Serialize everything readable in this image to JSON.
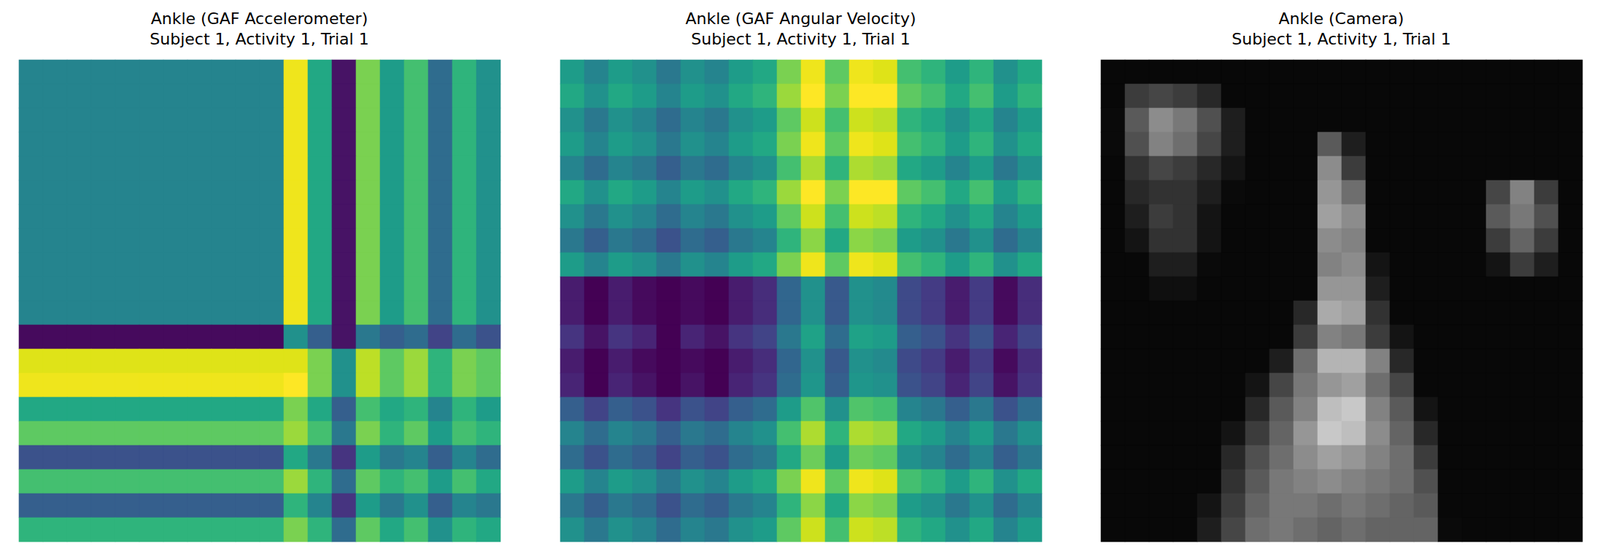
{
  "chart_data": [
    {
      "type": "heatmap",
      "title": "Ankle (GAF Accelerometer)",
      "subtitle": "Subject 1, Activity 1, Trial 1",
      "color": "viridis",
      "tick_labels": false,
      "clim": [
        -1,
        1
      ],
      "cells": [
        [
          -0.1,
          -0.1,
          -0.1,
          -0.1,
          -0.1,
          -0.1,
          -0.1,
          -0.1,
          -0.1,
          -0.1,
          -0.1,
          0.95,
          0.2,
          -0.9,
          0.6,
          0.1,
          0.4,
          -0.3,
          0.3,
          0
        ],
        [
          -0.1,
          -0.1,
          -0.1,
          -0.1,
          -0.1,
          -0.1,
          -0.1,
          -0.1,
          -0.1,
          -0.1,
          -0.1,
          0.95,
          0.2,
          -0.9,
          0.6,
          0.1,
          0.4,
          -0.3,
          0.3,
          0
        ],
        [
          -0.1,
          -0.1,
          -0.1,
          -0.1,
          -0.1,
          -0.1,
          -0.1,
          -0.1,
          -0.1,
          -0.1,
          -0.1,
          0.95,
          0.2,
          -0.9,
          0.6,
          0.1,
          0.4,
          -0.3,
          0.3,
          0
        ],
        [
          -0.1,
          -0.1,
          -0.1,
          -0.1,
          -0.1,
          -0.1,
          -0.1,
          -0.1,
          -0.1,
          -0.1,
          -0.1,
          0.95,
          0.2,
          -0.9,
          0.6,
          0.1,
          0.4,
          -0.3,
          0.3,
          0
        ],
        [
          -0.1,
          -0.1,
          -0.1,
          -0.1,
          -0.1,
          -0.1,
          -0.1,
          -0.1,
          -0.1,
          -0.1,
          -0.1,
          0.95,
          0.2,
          -0.9,
          0.6,
          0.1,
          0.4,
          -0.3,
          0.3,
          0
        ],
        [
          -0.1,
          -0.1,
          -0.1,
          -0.1,
          -0.1,
          -0.1,
          -0.1,
          -0.1,
          -0.1,
          -0.1,
          -0.1,
          0.95,
          0.2,
          -0.9,
          0.6,
          0.1,
          0.4,
          -0.3,
          0.3,
          0
        ],
        [
          -0.1,
          -0.1,
          -0.1,
          -0.1,
          -0.1,
          -0.1,
          -0.1,
          -0.1,
          -0.1,
          -0.1,
          -0.1,
          0.95,
          0.2,
          -0.9,
          0.6,
          0.1,
          0.4,
          -0.3,
          0.3,
          0
        ],
        [
          -0.1,
          -0.1,
          -0.1,
          -0.1,
          -0.1,
          -0.1,
          -0.1,
          -0.1,
          -0.1,
          -0.1,
          -0.1,
          0.95,
          0.2,
          -0.9,
          0.6,
          0.1,
          0.4,
          -0.3,
          0.3,
          0
        ],
        [
          -0.1,
          -0.1,
          -0.1,
          -0.1,
          -0.1,
          -0.1,
          -0.1,
          -0.1,
          -0.1,
          -0.1,
          -0.1,
          0.95,
          0.2,
          -0.9,
          0.6,
          0.1,
          0.4,
          -0.3,
          0.3,
          0
        ],
        [
          -0.1,
          -0.1,
          -0.1,
          -0.1,
          -0.1,
          -0.1,
          -0.1,
          -0.1,
          -0.1,
          -0.1,
          -0.1,
          0.95,
          0.2,
          -0.9,
          0.6,
          0.1,
          0.4,
          -0.3,
          0.3,
          0
        ],
        [
          -0.1,
          -0.1,
          -0.1,
          -0.1,
          -0.1,
          -0.1,
          -0.1,
          -0.1,
          -0.1,
          -0.1,
          -0.1,
          0.95,
          0.2,
          -0.9,
          0.6,
          0.1,
          0.4,
          -0.3,
          0.3,
          0
        ],
        [
          -0.95,
          -0.95,
          -0.95,
          -0.95,
          -0.95,
          -0.95,
          -0.95,
          -0.95,
          -0.95,
          -0.95,
          -0.95,
          0,
          -0.4,
          -0.9,
          -0.2,
          -0.4,
          -0.3,
          -0.6,
          -0.3,
          -0.5
        ],
        [
          0.9,
          0.9,
          0.9,
          0.9,
          0.9,
          0.9,
          0.9,
          0.9,
          0.9,
          0.9,
          0.9,
          0.9,
          0.6,
          0,
          0.8,
          0.5,
          0.7,
          0.3,
          0.6,
          0.5
        ],
        [
          0.95,
          0.95,
          0.95,
          0.95,
          0.95,
          0.95,
          0.95,
          0.95,
          0.95,
          0.95,
          0.95,
          1,
          0.6,
          0,
          0.8,
          0.5,
          0.7,
          0.3,
          0.6,
          0.5
        ],
        [
          0.2,
          0.2,
          0.2,
          0.2,
          0.2,
          0.2,
          0.2,
          0.2,
          0.2,
          0.2,
          0.2,
          0.6,
          0.2,
          -0.4,
          0.4,
          0.2,
          0.3,
          -0.1,
          0.3,
          0.1
        ],
        [
          0.5,
          0.5,
          0.5,
          0.5,
          0.5,
          0.5,
          0.5,
          0.5,
          0.5,
          0.5,
          0.5,
          0.7,
          0.4,
          -0.2,
          0.6,
          0.3,
          0.5,
          0.1,
          0.4,
          0.3
        ],
        [
          -0.5,
          -0.5,
          -0.5,
          -0.5,
          -0.5,
          -0.5,
          -0.5,
          -0.5,
          -0.5,
          -0.5,
          -0.5,
          0.2,
          -0.2,
          -0.7,
          0.1,
          -0.2,
          -0.1,
          -0.4,
          -0.1,
          -0.3
        ],
        [
          0.4,
          0.4,
          0.4,
          0.4,
          0.4,
          0.4,
          0.4,
          0.4,
          0.4,
          0.4,
          0.4,
          0.7,
          0.3,
          -0.3,
          0.5,
          0.3,
          0.4,
          0.1,
          0.4,
          0.2
        ],
        [
          -0.4,
          -0.4,
          -0.4,
          -0.4,
          -0.4,
          -0.4,
          -0.4,
          -0.4,
          -0.4,
          -0.4,
          -0.4,
          0.3,
          -0.1,
          -0.7,
          0.1,
          -0.2,
          0,
          -0.4,
          -0.1,
          -0.2
        ],
        [
          0.3,
          0.3,
          0.3,
          0.3,
          0.3,
          0.3,
          0.3,
          0.3,
          0.3,
          0.3,
          0.3,
          0.6,
          0.3,
          -0.3,
          0.5,
          0.2,
          0.4,
          0,
          0.3,
          0.2
        ]
      ]
    },
    {
      "type": "heatmap",
      "title": "Ankle (GAF Angular Velocity)",
      "subtitle": "Subject 1, Activity 1, Trial 1",
      "color": "viridis",
      "tick_labels": false,
      "clim": [
        -1,
        1
      ],
      "cells": [
        [
          0.1,
          -0.1,
          0.1,
          0,
          -0.2,
          0,
          -0.1,
          0.1,
          0.2,
          0.6,
          0.95,
          0.5,
          0.95,
          0.9,
          0.4,
          0.3,
          0.1,
          0.3,
          0,
          0.2
        ],
        [
          0.2,
          0,
          0.2,
          0.1,
          -0.1,
          0.1,
          0,
          0.2,
          0.3,
          0.7,
          1,
          0.6,
          1,
          1,
          0.5,
          0.4,
          0.2,
          0.4,
          0.1,
          0.3
        ],
        [
          0,
          -0.2,
          0,
          -0.1,
          -0.3,
          -0.1,
          -0.2,
          0,
          0.1,
          0.5,
          0.85,
          0.4,
          0.85,
          0.8,
          0.3,
          0.2,
          0,
          0.2,
          -0.1,
          0.1
        ],
        [
          0.1,
          -0.1,
          0.1,
          0,
          -0.2,
          0,
          -0.1,
          0.1,
          0.2,
          0.6,
          0.95,
          0.5,
          0.95,
          0.9,
          0.4,
          0.3,
          0.1,
          0.3,
          0,
          0.2
        ],
        [
          -0.1,
          -0.3,
          -0.1,
          -0.2,
          -0.4,
          -0.2,
          -0.3,
          -0.1,
          0,
          0.4,
          0.75,
          0.3,
          0.75,
          0.7,
          0.2,
          0.1,
          -0.1,
          0.1,
          -0.2,
          0
        ],
        [
          0.2,
          0,
          0.2,
          0.1,
          -0.1,
          0.1,
          0,
          0.2,
          0.3,
          0.7,
          1,
          0.6,
          1,
          1,
          0.5,
          0.4,
          0.2,
          0.4,
          0.1,
          0.3
        ],
        [
          0,
          -0.2,
          0,
          -0.1,
          -0.3,
          -0.1,
          -0.2,
          0,
          0.1,
          0.5,
          0.85,
          0.4,
          0.85,
          0.8,
          0.3,
          0.2,
          0,
          0.2,
          -0.1,
          0.1
        ],
        [
          -0.2,
          -0.4,
          -0.2,
          -0.3,
          -0.5,
          -0.3,
          -0.4,
          -0.2,
          -0.1,
          0.3,
          0.65,
          0.2,
          0.65,
          0.6,
          0.1,
          0,
          -0.2,
          0,
          -0.3,
          -0.1
        ],
        [
          0.1,
          -0.1,
          0.1,
          0,
          -0.2,
          0,
          -0.1,
          0.1,
          0.2,
          0.6,
          0.95,
          0.5,
          0.95,
          0.9,
          0.4,
          0.3,
          0.1,
          0.3,
          0,
          0.2
        ],
        [
          -0.85,
          -1,
          -0.85,
          -0.95,
          -1,
          -0.95,
          -1,
          -0.85,
          -0.75,
          -0.35,
          0,
          -0.45,
          0,
          -0.05,
          -0.55,
          -0.65,
          -0.85,
          -0.65,
          -0.95,
          -0.75
        ],
        [
          -0.85,
          -1,
          -0.85,
          -0.95,
          -1,
          -0.95,
          -1,
          -0.85,
          -0.75,
          -0.35,
          0,
          -0.45,
          0,
          -0.05,
          -0.55,
          -0.65,
          -0.85,
          -0.65,
          -0.95,
          -0.75
        ],
        [
          -0.7,
          -0.9,
          -0.7,
          -0.8,
          -1,
          -0.8,
          -0.9,
          -0.7,
          -0.6,
          -0.2,
          0.15,
          -0.3,
          0.15,
          0.1,
          -0.4,
          -0.5,
          -0.7,
          -0.5,
          -0.8,
          -0.6
        ],
        [
          -0.85,
          -1,
          -0.85,
          -0.95,
          -1,
          -0.95,
          -1,
          -0.85,
          -0.75,
          -0.35,
          0,
          -0.45,
          0,
          -0.05,
          -0.55,
          -0.65,
          -0.85,
          -0.65,
          -0.95,
          -0.75
        ],
        [
          -0.8,
          -1,
          -0.8,
          -0.9,
          -1,
          -0.9,
          -1,
          -0.8,
          -0.7,
          -0.3,
          0.05,
          -0.4,
          0.05,
          0,
          -0.5,
          -0.6,
          -0.8,
          -0.6,
          -0.9,
          -0.7
        ],
        [
          -0.4,
          -0.6,
          -0.4,
          -0.5,
          -0.7,
          -0.5,
          -0.6,
          -0.4,
          -0.3,
          0.1,
          0.45,
          0,
          0.45,
          0.4,
          -0.1,
          -0.2,
          -0.4,
          -0.2,
          -0.5,
          -0.3
        ],
        [
          -0.1,
          -0.3,
          -0.1,
          -0.2,
          -0.4,
          -0.2,
          -0.3,
          -0.1,
          0,
          0.4,
          0.75,
          0.3,
          0.75,
          0.7,
          0.2,
          0.1,
          -0.1,
          0.1,
          -0.2,
          0
        ],
        [
          -0.3,
          -0.5,
          -0.3,
          -0.4,
          -0.6,
          -0.4,
          -0.5,
          -0.3,
          -0.2,
          0.2,
          0.55,
          0.1,
          0.55,
          0.5,
          0,
          -0.1,
          -0.3,
          -0.1,
          -0.4,
          -0.2
        ],
        [
          0.1,
          -0.1,
          0.1,
          0,
          -0.2,
          0,
          -0.1,
          0.1,
          0.2,
          0.6,
          0.95,
          0.5,
          0.95,
          0.9,
          0.4,
          0.3,
          0.1,
          0.3,
          0,
          0.2
        ],
        [
          -0.2,
          -0.4,
          -0.2,
          -0.3,
          -0.5,
          -0.3,
          -0.4,
          -0.2,
          -0.1,
          0.3,
          0.65,
          0.2,
          0.65,
          0.6,
          0.1,
          0,
          -0.2,
          0,
          -0.3,
          -0.1
        ],
        [
          0,
          -0.2,
          0,
          -0.1,
          -0.3,
          -0.1,
          -0.2,
          0,
          0.1,
          0.5,
          0.85,
          0.4,
          0.85,
          0.8,
          0.3,
          0.2,
          0,
          0.2,
          -0.1,
          0.1
        ]
      ]
    },
    {
      "type": "image",
      "title": "Ankle (Camera)",
      "subtitle": "Subject 1, Activity 1, Trial 1",
      "color": "gray",
      "tick_labels": false,
      "clim": [
        0,
        255
      ],
      "cells": [
        [
          8,
          8,
          8,
          8,
          8,
          8,
          8,
          8,
          8,
          8,
          8,
          8,
          8,
          8,
          8,
          8,
          8,
          8,
          8,
          8
        ],
        [
          8,
          60,
          70,
          60,
          40,
          8,
          8,
          8,
          8,
          8,
          8,
          8,
          8,
          8,
          8,
          8,
          8,
          8,
          8,
          8
        ],
        [
          10,
          90,
          140,
          120,
          80,
          30,
          8,
          8,
          8,
          8,
          8,
          8,
          8,
          8,
          8,
          8,
          8,
          8,
          8,
          8
        ],
        [
          10,
          80,
          130,
          110,
          70,
          30,
          8,
          8,
          8,
          90,
          30,
          8,
          8,
          8,
          8,
          8,
          8,
          8,
          8,
          8
        ],
        [
          8,
          50,
          70,
          60,
          40,
          20,
          8,
          8,
          8,
          140,
          60,
          8,
          8,
          8,
          8,
          8,
          8,
          8,
          8,
          8
        ],
        [
          8,
          40,
          50,
          50,
          30,
          10,
          8,
          8,
          8,
          150,
          110,
          8,
          8,
          8,
          8,
          8,
          70,
          130,
          60,
          8
        ],
        [
          8,
          30,
          60,
          50,
          20,
          8,
          8,
          8,
          8,
          160,
          140,
          8,
          8,
          8,
          8,
          8,
          90,
          120,
          80,
          8
        ],
        [
          8,
          20,
          50,
          50,
          20,
          8,
          8,
          8,
          8,
          140,
          130,
          8,
          8,
          8,
          8,
          8,
          60,
          100,
          60,
          8
        ],
        [
          8,
          8,
          30,
          30,
          10,
          8,
          8,
          8,
          8,
          130,
          140,
          20,
          8,
          8,
          8,
          8,
          20,
          60,
          30,
          8
        ],
        [
          8,
          8,
          15,
          15,
          8,
          8,
          8,
          8,
          8,
          150,
          150,
          30,
          8,
          8,
          8,
          8,
          8,
          8,
          8,
          8
        ],
        [
          8,
          8,
          8,
          8,
          8,
          8,
          8,
          8,
          40,
          170,
          160,
          50,
          8,
          8,
          8,
          8,
          8,
          8,
          8,
          8
        ],
        [
          8,
          8,
          8,
          8,
          8,
          8,
          8,
          8,
          60,
          130,
          120,
          60,
          20,
          8,
          8,
          8,
          8,
          8,
          8,
          8
        ],
        [
          8,
          8,
          8,
          8,
          8,
          8,
          8,
          30,
          110,
          180,
          180,
          130,
          40,
          8,
          8,
          8,
          8,
          8,
          8,
          8
        ],
        [
          8,
          8,
          8,
          8,
          8,
          8,
          20,
          70,
          120,
          150,
          160,
          110,
          70,
          8,
          8,
          8,
          8,
          8,
          8,
          8
        ],
        [
          8,
          8,
          8,
          8,
          8,
          8,
          40,
          90,
          130,
          190,
          200,
          130,
          90,
          20,
          8,
          8,
          8,
          8,
          8,
          8
        ],
        [
          8,
          8,
          8,
          8,
          8,
          20,
          60,
          100,
          150,
          200,
          190,
          140,
          100,
          40,
          8,
          8,
          8,
          8,
          8,
          8
        ],
        [
          8,
          8,
          8,
          8,
          8,
          40,
          80,
          110,
          140,
          160,
          150,
          130,
          110,
          60,
          8,
          8,
          8,
          8,
          8,
          8
        ],
        [
          8,
          8,
          8,
          8,
          8,
          50,
          90,
          120,
          130,
          140,
          130,
          120,
          110,
          80,
          8,
          8,
          8,
          8,
          8,
          8
        ],
        [
          8,
          8,
          8,
          8,
          20,
          60,
          100,
          120,
          120,
          110,
          120,
          110,
          100,
          90,
          8,
          8,
          8,
          8,
          8,
          8
        ],
        [
          8,
          8,
          8,
          8,
          30,
          70,
          110,
          120,
          110,
          100,
          110,
          100,
          100,
          100,
          10,
          8,
          8,
          8,
          8,
          8
        ]
      ]
    }
  ]
}
